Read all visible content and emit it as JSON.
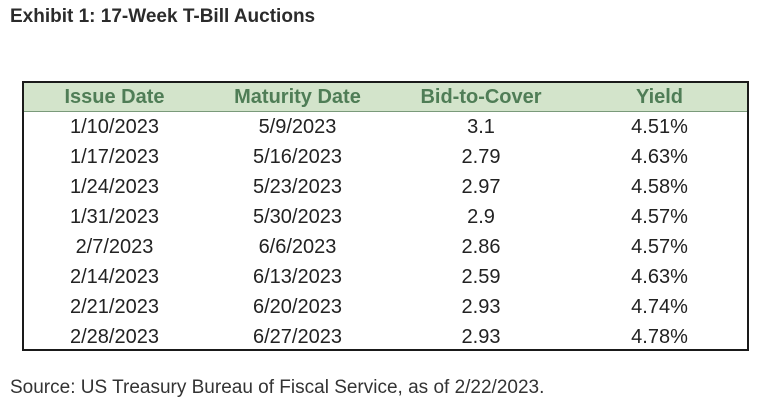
{
  "title": "Exhibit 1: 17-Week T-Bill Auctions",
  "table": {
    "columns": [
      "Issue Date",
      "Maturity Date",
      "Bid-to-Cover",
      "Yield"
    ],
    "rows": [
      [
        "1/10/2023",
        "5/9/2023",
        "3.1",
        "4.51%"
      ],
      [
        "1/17/2023",
        "5/16/2023",
        "2.79",
        "4.63%"
      ],
      [
        "1/24/2023",
        "5/23/2023",
        "2.97",
        "4.58%"
      ],
      [
        "1/31/2023",
        "5/30/2023",
        "2.9",
        "4.57%"
      ],
      [
        "2/7/2023",
        "6/6/2023",
        "2.86",
        "4.57%"
      ],
      [
        "2/14/2023",
        "6/13/2023",
        "2.59",
        "4.63%"
      ],
      [
        "2/21/2023",
        "6/20/2023",
        "2.93",
        "4.74%"
      ],
      [
        "2/28/2023",
        "6/27/2023",
        "2.93",
        "4.78%"
      ]
    ]
  },
  "source": "Source: US Treasury Bureau of Fiscal Service, as of 2/22/2023.",
  "colors": {
    "header_background": "#d3e4cb",
    "header_text": "#4f7d56",
    "border": "#1a1a1a"
  }
}
